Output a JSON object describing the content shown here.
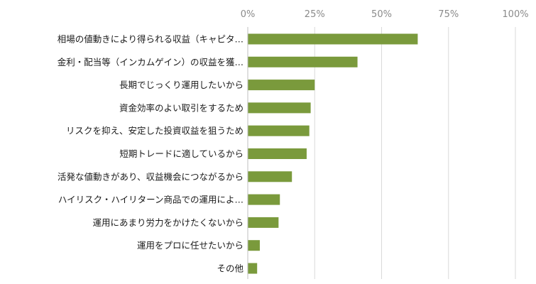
{
  "chart_data": {
    "type": "bar",
    "orientation": "horizontal",
    "title": "",
    "xlabel": "",
    "ylabel": "",
    "xlim": [
      0,
      100
    ],
    "x_ticks": [
      "0%",
      "25%",
      "50%",
      "75%",
      "100%"
    ],
    "x_tick_values": [
      0,
      25,
      50,
      75,
      100
    ],
    "x_axis_position": "top",
    "grid": true,
    "bar_color": "#7a9a3c",
    "categories": [
      "相場の値動きにより得られる収益（キャピタ…",
      "金利・配当等（インカムゲイン）の収益を獲…",
      "長期でじっくり運用したいから",
      "資金効率のよい取引をするため",
      "リスクを抑え、安定した投資収益を狙うため",
      "短期トレードに適しているから",
      "活発な値動きがあり、収益機会につながるから",
      "ハイリスク・ハイリターン商品での運用によ…",
      "運用にあまり労力をかけたくないから",
      "運用をプロに任せたいから",
      "その他"
    ],
    "values": [
      63.5,
      41,
      25,
      23.5,
      23,
      22,
      16.5,
      12,
      11.5,
      4.5,
      3.5
    ]
  }
}
